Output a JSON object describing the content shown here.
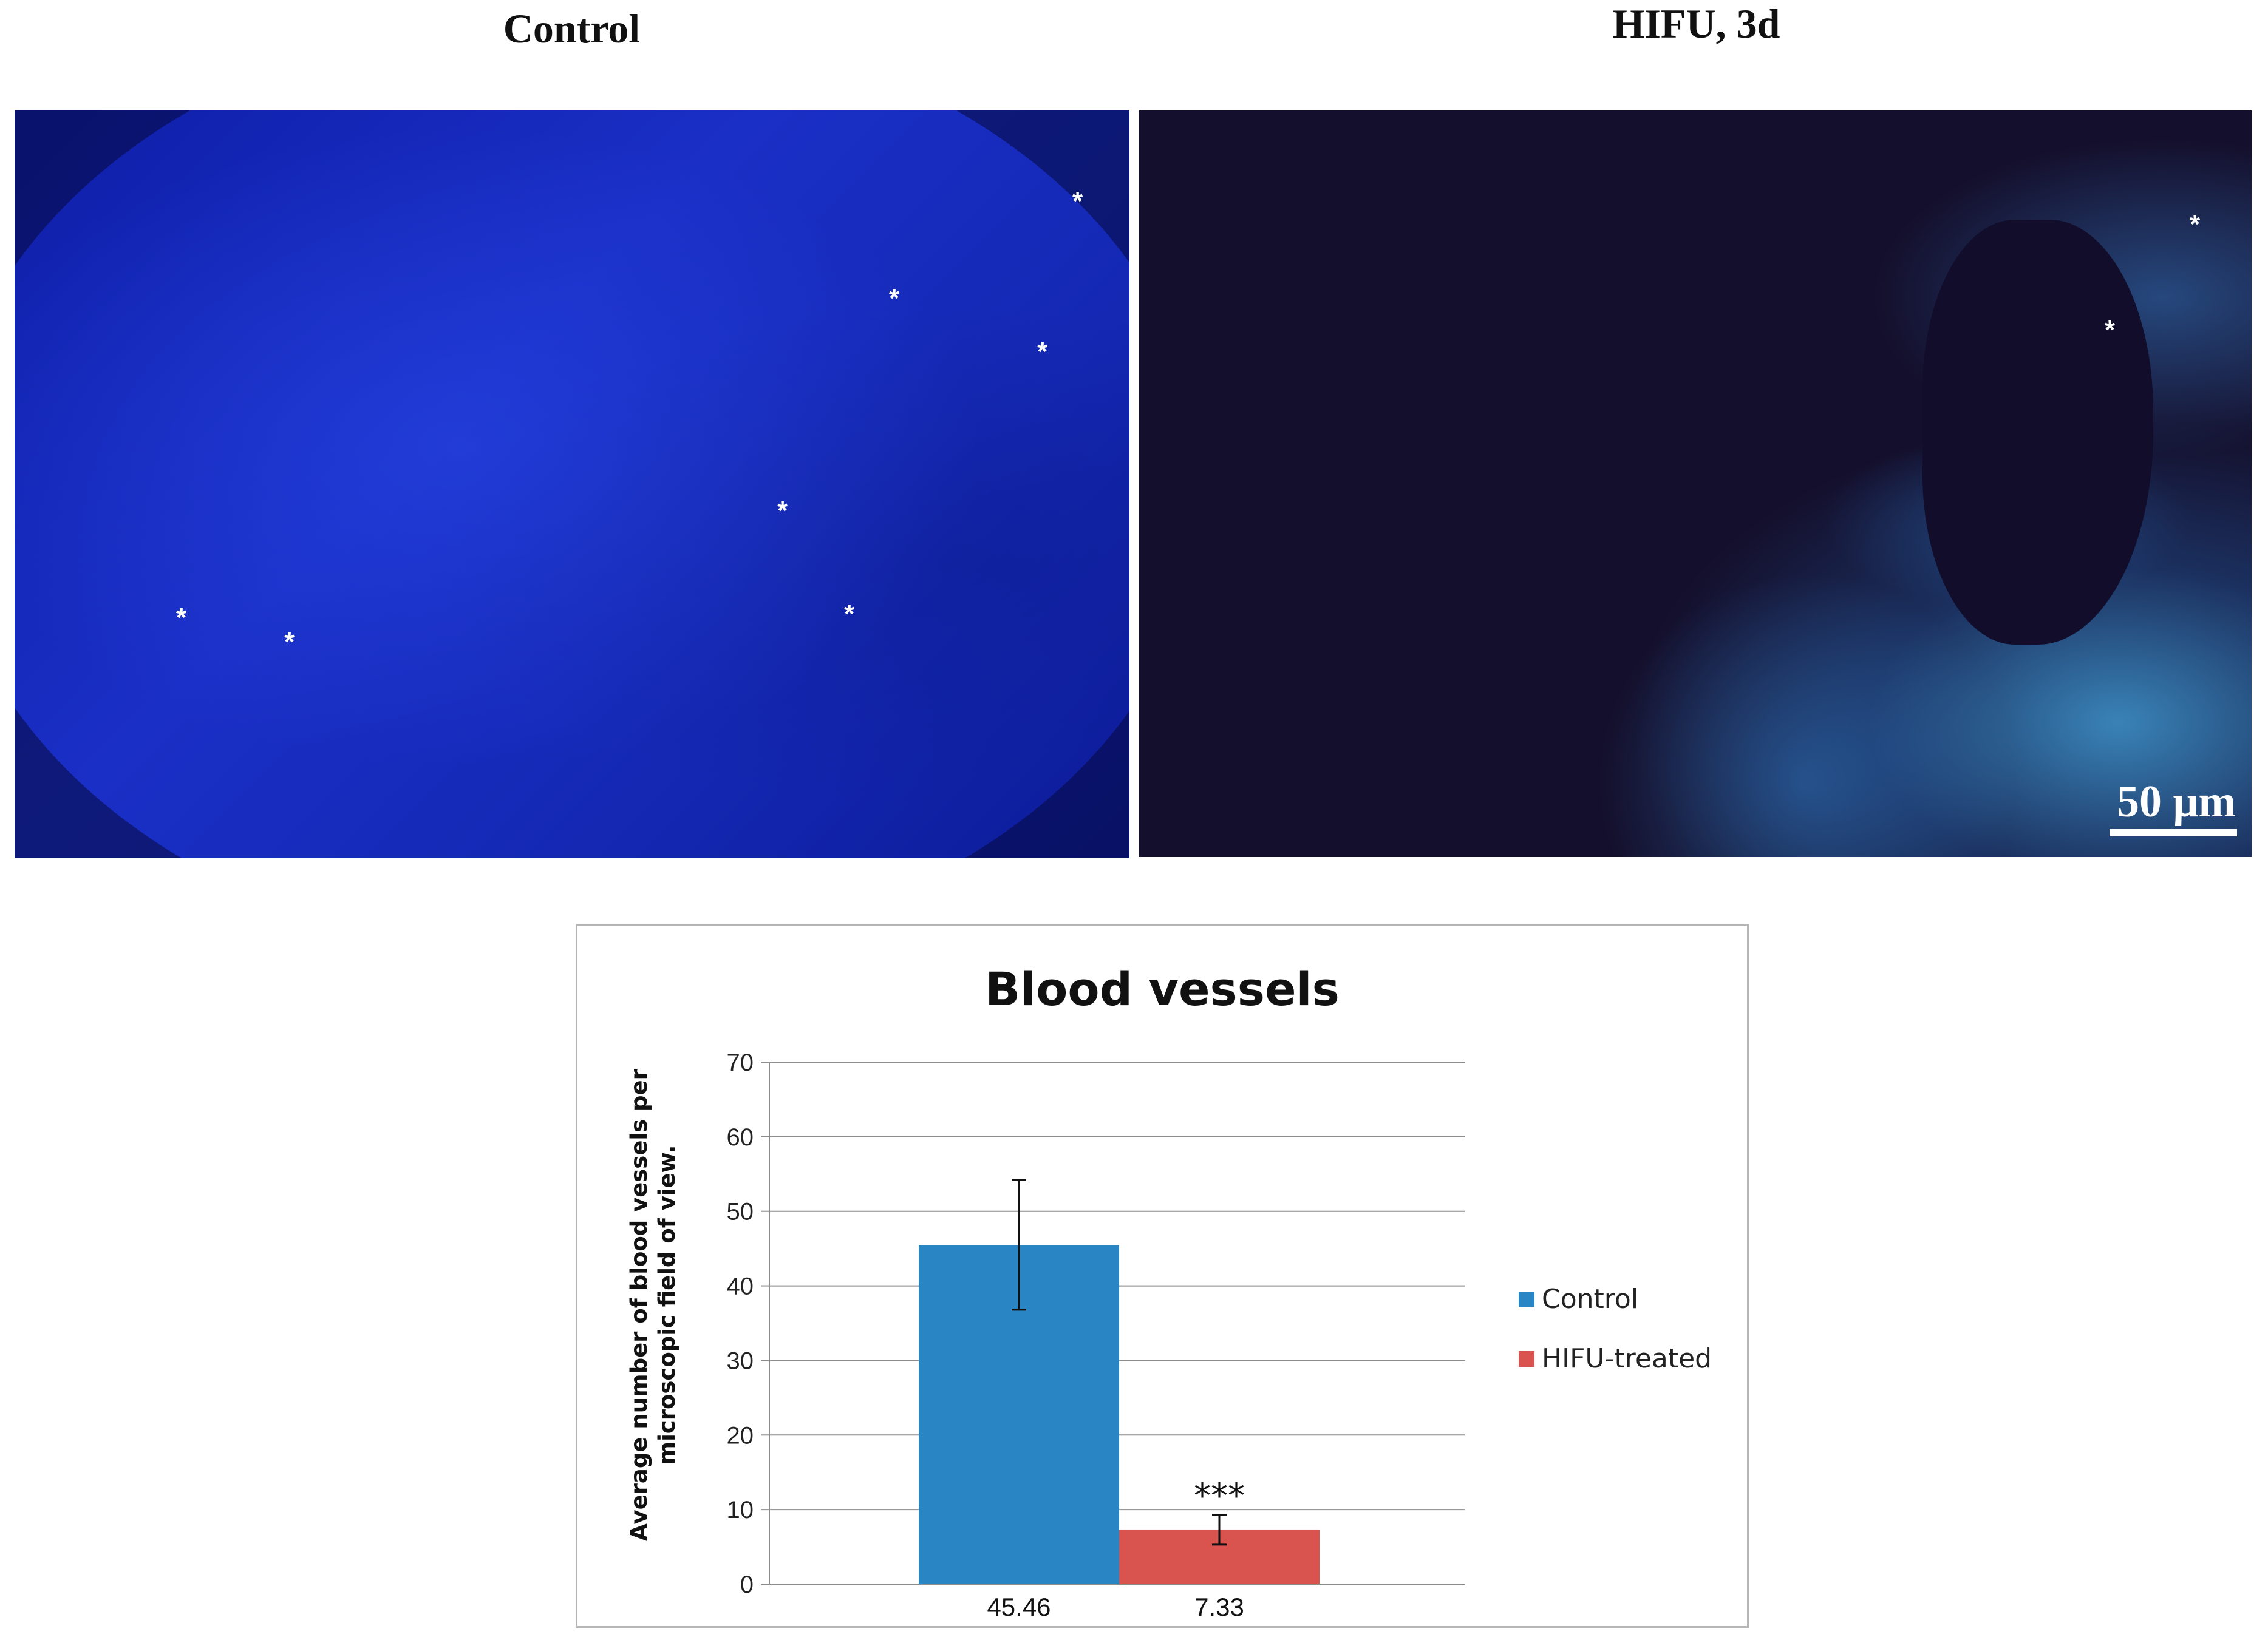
{
  "panels": {
    "left_title": "Control",
    "right_title": "HIFU, 3d",
    "asterisk": "*",
    "scale_bar_label": "50 μm"
  },
  "chart_data": {
    "type": "bar",
    "title": "Blood vessels",
    "ylabel": "Average number of blood vessels per microscopic field of view.",
    "xlabel": "",
    "ylim": [
      0,
      70
    ],
    "yticks": [
      0,
      10,
      20,
      30,
      40,
      50,
      60,
      70
    ],
    "grid": true,
    "legend_position": "right",
    "series": [
      {
        "name": "Control",
        "value": 45.46,
        "error_low": 36.8,
        "error_high": 54.2,
        "color": "#2a85c4",
        "label": "45.46"
      },
      {
        "name": "HIFU-treated",
        "value": 7.33,
        "error_low": 5.3,
        "error_high": 9.3,
        "color": "#d9534f",
        "label": "7.33",
        "annotation": "***"
      }
    ]
  }
}
